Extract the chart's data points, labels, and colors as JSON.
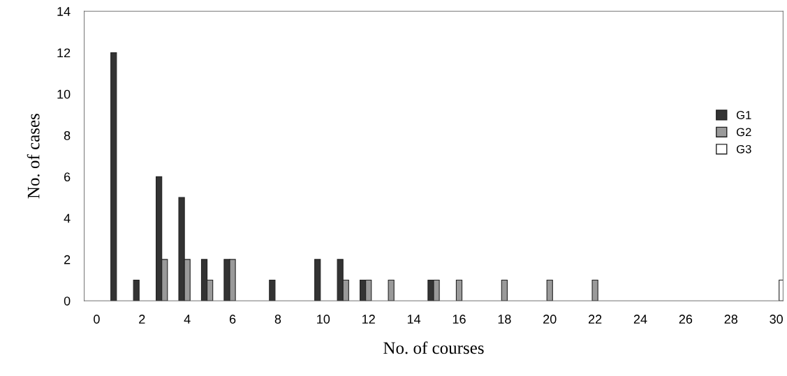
{
  "chart_data": {
    "type": "bar",
    "xlabel": "No. of courses",
    "ylabel": "No. of cases",
    "xlim": [
      -0.55,
      30.3
    ],
    "xticks": [
      0,
      2,
      4,
      6,
      8,
      10,
      12,
      14,
      16,
      18,
      20,
      22,
      24,
      26,
      28,
      30
    ],
    "ylim": [
      0,
      14
    ],
    "yticks": [
      0,
      2,
      4,
      6,
      8,
      10,
      12,
      14
    ],
    "grid": false,
    "legend": "right",
    "series": [
      {
        "name": "G1",
        "color": "#333333",
        "x": [
          1,
          2,
          3,
          4,
          5,
          6,
          8,
          10,
          11,
          12,
          15
        ],
        "values": [
          12,
          1,
          6,
          5,
          2,
          2,
          1,
          2,
          2,
          1,
          1
        ]
      },
      {
        "name": "G2",
        "color": "#9a9a9a",
        "x": [
          3,
          4,
          5,
          6,
          11,
          12,
          13,
          15,
          16,
          18,
          20,
          22
        ],
        "values": [
          2,
          2,
          1,
          2,
          1,
          1,
          1,
          1,
          1,
          1,
          1,
          1
        ]
      },
      {
        "name": "G3",
        "color": "#ffffff",
        "x": [
          30
        ],
        "values": [
          1
        ]
      }
    ]
  }
}
